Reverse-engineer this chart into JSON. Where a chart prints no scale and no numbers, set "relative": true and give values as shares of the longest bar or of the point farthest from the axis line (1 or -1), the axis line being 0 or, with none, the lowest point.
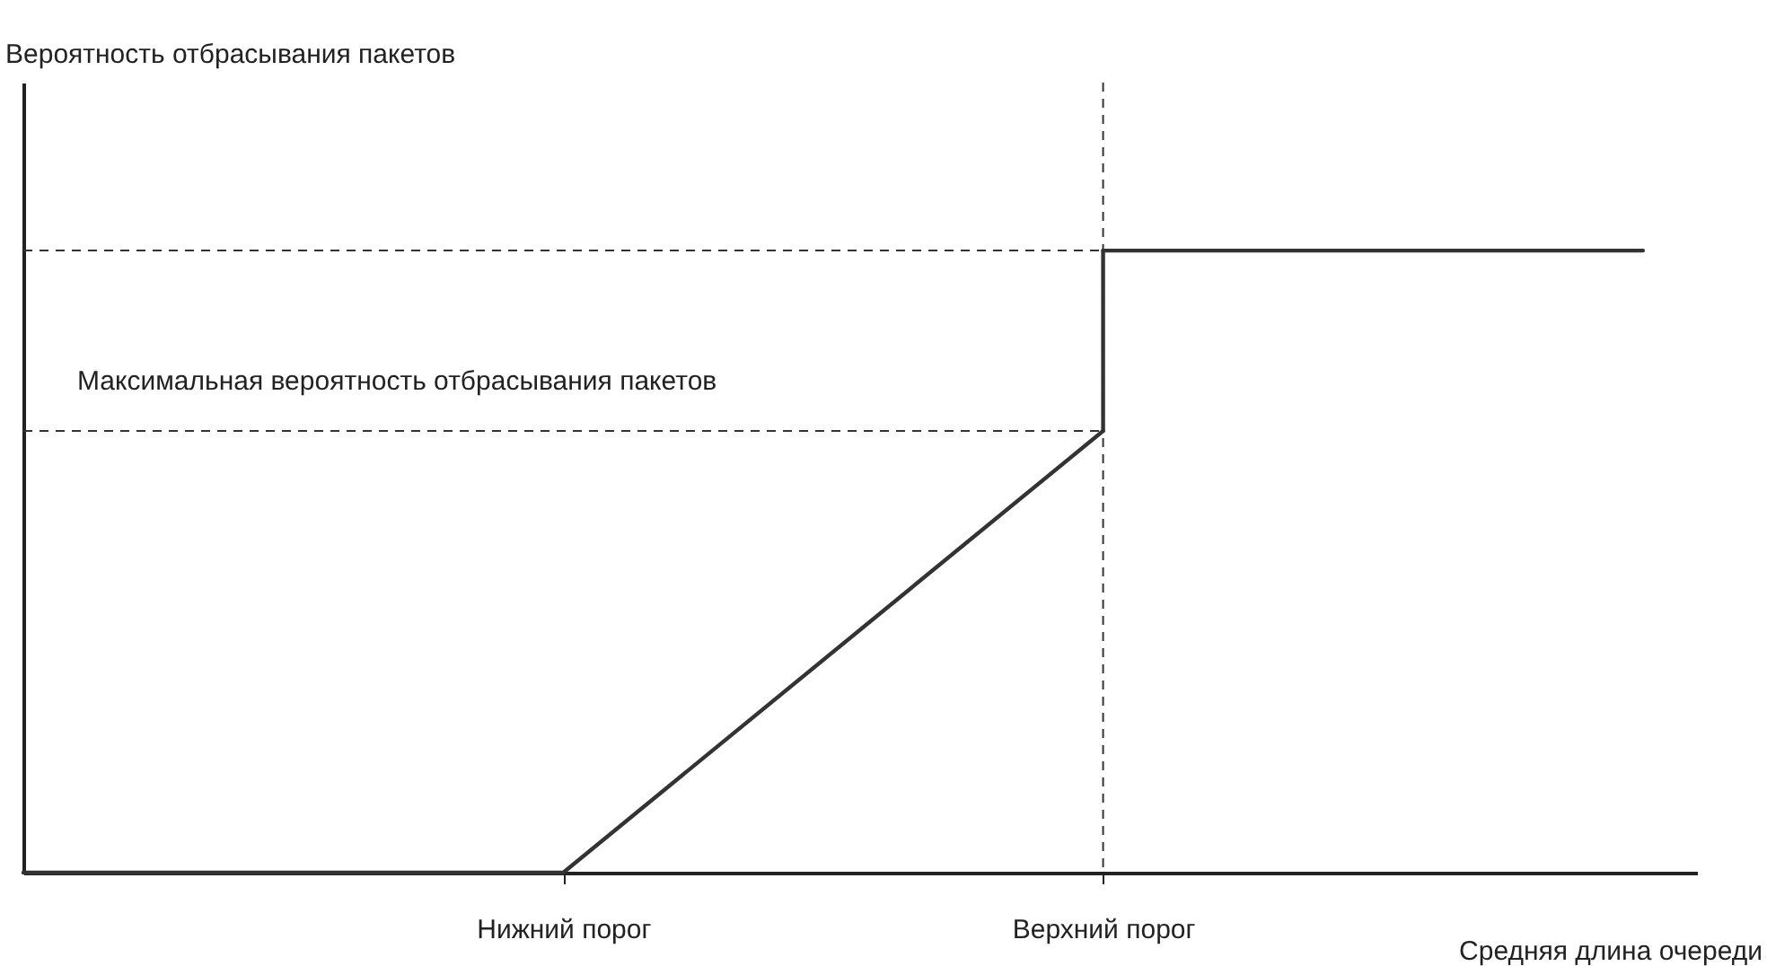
{
  "chart_data": {
    "type": "line",
    "relative": true,
    "xlabel": "Средняя длина очереди",
    "annotations": [
      "Вероятность отбрасывания пакетов"
    ],
    "categories": [
      null,
      "Нижний порог",
      "Верхний порог",
      null
    ],
    "series": [
      {
        "color": "#333333",
        "values": [
          0,
          0,
          0.71,
          null
        ]
      },
      {
        "color": "#333333",
        "x": [
          "Верхний порог",
          "Верхний порог"
        ],
        "values": [
          0.71,
          1
        ]
      },
      {
        "color": "#333333",
        "values": [
          null,
          null,
          1,
          1
        ]
      }
    ],
    "ref_lines": [
      {
        "axis": "y",
        "value": 1,
        "line_style": "dashed",
        "color": "#333333"
      },
      {
        "axis": "y",
        "value": 0.71,
        "label": "Максимальная вероятность отбрасывания пакетов",
        "line_style": "dashed",
        "color": "#333333"
      },
      {
        "axis": "x",
        "value": "Верхний порог",
        "line_style": "dashed",
        "color": "#333333"
      }
    ],
    "grid": false,
    "line_style": "solid",
    "marker": "none"
  }
}
